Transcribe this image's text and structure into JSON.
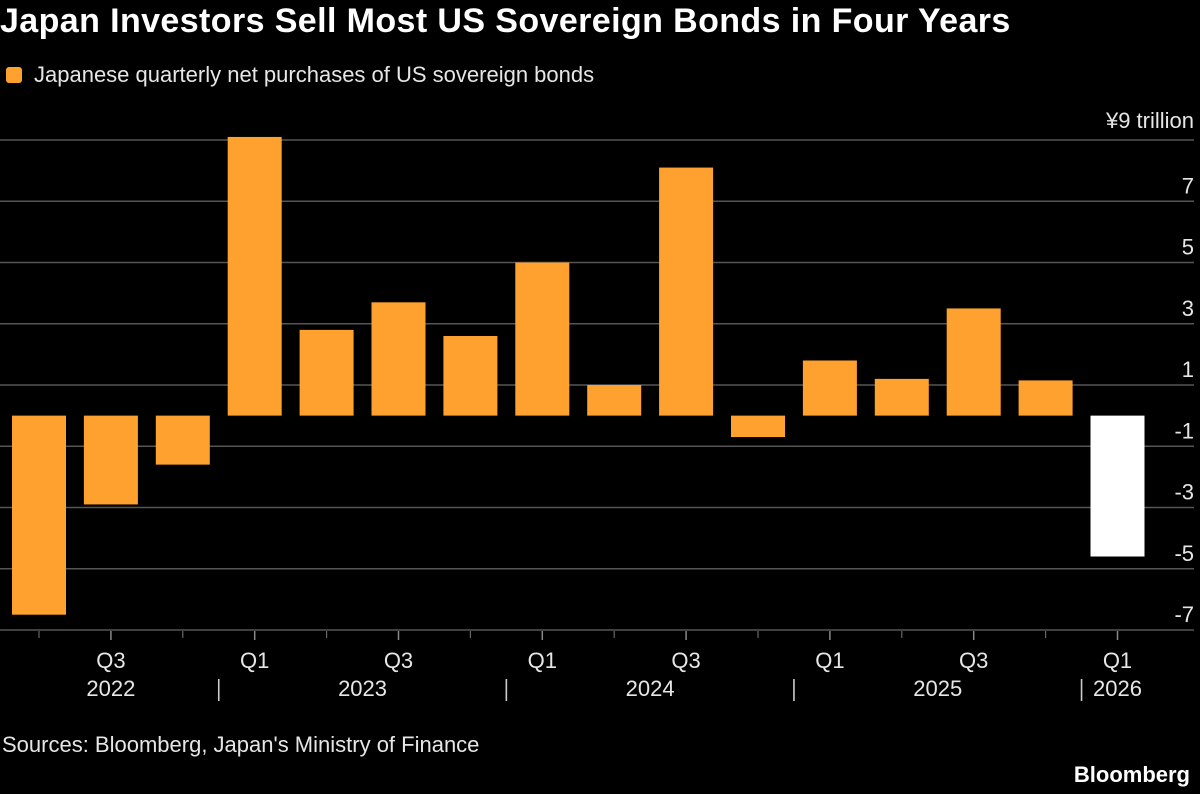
{
  "title": "Japan Investors Sell Most US Sovereign Bonds in Four Years",
  "legend": {
    "label": "Japanese quarterly net purchases of US sovereign bonds",
    "color": "#ffa12e"
  },
  "source": "Sources: Bloomberg, Japan's Ministry of Finance",
  "brand": "Bloomberg",
  "chart_data": {
    "type": "bar",
    "categories": [
      "2022 Q2",
      "2022 Q3",
      "2022 Q4",
      "2023 Q1",
      "2023 Q2",
      "2023 Q3",
      "2023 Q4",
      "2024 Q1",
      "2024 Q2",
      "2024 Q3",
      "2024 Q4",
      "2025 Q1",
      "2025 Q2",
      "2025 Q3",
      "2025 Q4",
      "2026 Q1"
    ],
    "series": [
      {
        "values": [
          -6.5,
          -2.9,
          -1.6,
          9.1,
          2.8,
          3.7,
          2.6,
          5.0,
          1.0,
          8.1,
          -0.7,
          1.8,
          1.2,
          3.5,
          1.15,
          -4.6
        ],
        "colors": [
          "#ffa12e",
          "#ffa12e",
          "#ffa12e",
          "#ffa12e",
          "#ffa12e",
          "#ffa12e",
          "#ffa12e",
          "#ffa12e",
          "#ffa12e",
          "#ffa12e",
          "#ffa12e",
          "#ffa12e",
          "#ffa12e",
          "#ffa12e",
          "#ffa12e",
          "#ffffff"
        ]
      }
    ],
    "y_unit_label": "¥9 trillion",
    "yticks": [
      9,
      7,
      5,
      3,
      1,
      -1,
      -3,
      -5,
      -7
    ],
    "ytick_labels": [
      "¥9 trillion",
      "7",
      "5",
      "3",
      "1",
      "-1",
      "-3",
      "-5",
      "-7"
    ],
    "ylim": [
      -7,
      9
    ],
    "quarter_labels": [
      {
        "index": 1,
        "label": "Q3"
      },
      {
        "index": 3,
        "label": "Q1"
      },
      {
        "index": 5,
        "label": "Q3"
      },
      {
        "index": 7,
        "label": "Q1"
      },
      {
        "index": 9,
        "label": "Q3"
      },
      {
        "index": 11,
        "label": "Q1"
      },
      {
        "index": 13,
        "label": "Q3"
      },
      {
        "index": 15,
        "label": "Q1"
      }
    ],
    "year_labels": [
      {
        "label": "2022",
        "start": 0,
        "end": 2
      },
      {
        "label": "2023",
        "start": 3,
        "end": 6
      },
      {
        "label": "2024",
        "start": 7,
        "end": 10
      },
      {
        "label": "2025",
        "start": 11,
        "end": 14
      },
      {
        "label": "2026",
        "start": 15,
        "end": 15
      }
    ],
    "grid": true,
    "legend_position": "top-left"
  }
}
